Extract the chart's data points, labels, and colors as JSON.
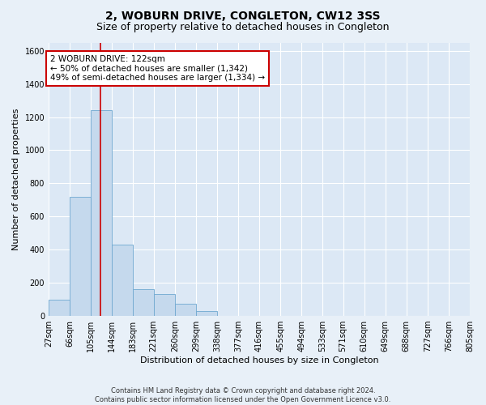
{
  "title": "2, WOBURN DRIVE, CONGLETON, CW12 3SS",
  "subtitle": "Size of property relative to detached houses in Congleton",
  "xlabel": "Distribution of detached houses by size in Congleton",
  "ylabel": "Number of detached properties",
  "footnote1": "Contains HM Land Registry data © Crown copyright and database right 2024.",
  "footnote2": "Contains public sector information licensed under the Open Government Licence v3.0.",
  "bar_left_edges": [
    27,
    66,
    105,
    144,
    183,
    221,
    260,
    299,
    338,
    377,
    416,
    455,
    494,
    533,
    571,
    610,
    649,
    688,
    727,
    766
  ],
  "bar_widths": [
    39,
    39,
    39,
    39,
    38,
    39,
    39,
    39,
    39,
    39,
    39,
    39,
    39,
    38,
    39,
    39,
    39,
    39,
    39,
    39
  ],
  "bar_heights": [
    100,
    720,
    1240,
    430,
    160,
    130,
    75,
    30,
    0,
    0,
    0,
    0,
    0,
    0,
    0,
    0,
    0,
    0,
    0,
    0
  ],
  "bar_color": "#c5d9ed",
  "bar_edge_color": "#6fa8d0",
  "ylim": [
    0,
    1650
  ],
  "yticks": [
    0,
    200,
    400,
    600,
    800,
    1000,
    1200,
    1400,
    1600
  ],
  "xtick_labels": [
    "27sqm",
    "66sqm",
    "105sqm",
    "144sqm",
    "183sqm",
    "221sqm",
    "260sqm",
    "299sqm",
    "338sqm",
    "377sqm",
    "416sqm",
    "455sqm",
    "494sqm",
    "533sqm",
    "571sqm",
    "610sqm",
    "649sqm",
    "688sqm",
    "727sqm",
    "766sqm",
    "805sqm"
  ],
  "vline_x": 122,
  "vline_color": "#cc0000",
  "annotation_text": "2 WOBURN DRIVE: 122sqm\n← 50% of detached houses are smaller (1,342)\n49% of semi-detached houses are larger (1,334) →",
  "bg_color": "#e8f0f8",
  "plot_bg_color": "#dce8f5",
  "grid_color": "#ffffff",
  "title_fontsize": 10,
  "subtitle_fontsize": 9,
  "axis_label_fontsize": 8,
  "tick_fontsize": 7,
  "annotation_fontsize": 7.5,
  "footnote_fontsize": 6
}
